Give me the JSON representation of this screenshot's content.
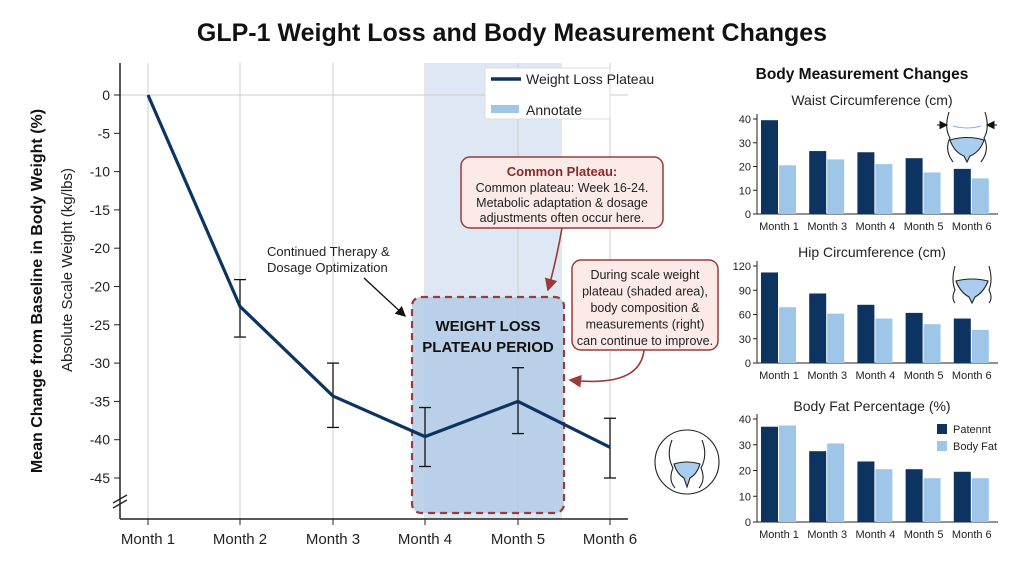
{
  "title": "GLP-1 Weight Loss and Body Measurement Changes",
  "colors": {
    "line": "#0d3461",
    "dark_bar": "#0d3461",
    "light_bar": "#9dc6e8",
    "shade": "#dde8f4",
    "plateau_box": "#b3cbe5",
    "callout_border": "#9b3a3a",
    "callout_fill": "#fbeae8",
    "callout_title": "#8b2a2a"
  },
  "chart_data": [
    {
      "type": "line",
      "ylabel": "Mean Change from Baseline in Body Weight (%)",
      "ylabel2": "Absolute Scale Weight (kg/lbs)",
      "categories": [
        "Month 1",
        "Month 2",
        "Month 3",
        "Month 4",
        "Month 5",
        "Month 6"
      ],
      "y_tick_labels": [
        "0",
        "-5",
        "-10",
        "-15",
        "-20",
        "-20",
        "-25",
        "-30",
        "-35",
        "-40",
        "-45"
      ],
      "axis_break": true,
      "grid": "vertical lines at months, horizontal line at 0",
      "series": [
        {
          "name": "Weight Loss Plateau",
          "values": [
            0,
            -22.6,
            -34.3,
            -39.6,
            -35,
            -41
          ],
          "error_low": [
            null,
            -26.6,
            -38.4,
            -43.5,
            -39.2,
            -45
          ],
          "error_high": [
            null,
            -19.1,
            -30,
            -35.8,
            -30.6,
            -37.2
          ]
        }
      ],
      "shaded_region": {
        "label": "Annotate",
        "from": "Month 4",
        "to": "Month 5"
      },
      "legend": {
        "placement": "top-right",
        "entries": [
          "Weight Loss Plateau",
          "Annotate"
        ]
      },
      "annotations": {
        "plateau_box": [
          "WEIGHT LOSS",
          "PLATEAU PERIOD"
        ],
        "therapy": [
          "Continued Therapy &",
          "Dosage Optimization"
        ],
        "common_plateau": {
          "title": "Common Plateau:",
          "lines": [
            "Common plateau: Week 16-24.",
            "Metabolic adaptation & dosage",
            "adjustments often occur here."
          ]
        },
        "scale_note": [
          "During scale weight",
          "plateau (shaded area),",
          "body composition &",
          "measurements (right)",
          "can continue to improve."
        ]
      }
    },
    {
      "type": "bar",
      "panel_title": "Body Measurement Changes",
      "title": "Waist Circumference (cm)",
      "categories": [
        "Month 1",
        "Month 3",
        "Month 4",
        "Month 5",
        "Month 6"
      ],
      "ylim": [
        0,
        40
      ],
      "yticks": [
        "0",
        "10",
        "20",
        "30",
        "40"
      ],
      "series": [
        {
          "values": [
            39.5,
            26.5,
            26,
            23.5,
            19
          ]
        },
        {
          "values": [
            20.5,
            23,
            21,
            17.5,
            15
          ]
        }
      ]
    },
    {
      "type": "bar",
      "title": "Hip Circumference (cm)",
      "categories": [
        "Month 1",
        "Month 3",
        "Month 4",
        "Month 5",
        "Month 6"
      ],
      "ylim": [
        0,
        120
      ],
      "yticks": [
        "0",
        "30",
        "60",
        "90",
        "120"
      ],
      "series": [
        {
          "values": [
            112,
            86,
            72,
            62,
            55
          ]
        },
        {
          "values": [
            69,
            61,
            55,
            48,
            41
          ]
        }
      ]
    },
    {
      "type": "bar",
      "title": "Body Fat Percentage (%)",
      "categories": [
        "Month 1",
        "Month 3",
        "Month 4",
        "Month 5",
        "Month 6"
      ],
      "ylim": [
        0,
        40
      ],
      "yticks": [
        "0",
        "10",
        "20",
        "30",
        "40"
      ],
      "legend": {
        "placement": "top-right"
      },
      "series": [
        {
          "name": "Patennt",
          "values": [
            37,
            27.5,
            23.5,
            20.5,
            19.5
          ]
        },
        {
          "name": "Body Fat",
          "values": [
            37.5,
            30.5,
            20.5,
            17,
            17
          ]
        }
      ]
    }
  ],
  "icons": [
    "waist-measure-icon",
    "hip-measure-icon",
    "body-fat-icon"
  ]
}
